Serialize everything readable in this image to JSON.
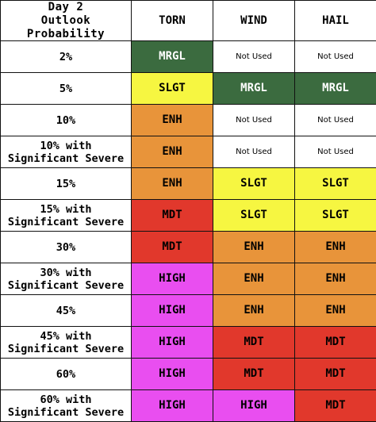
{
  "header": {
    "corner_line1": "Day 2",
    "corner_line2": "Outlook Probability",
    "columns": [
      "TORN",
      "WIND",
      "HAIL"
    ]
  },
  "colors": {
    "MRGL": "#3b6b3f",
    "SLGT": "#f6f641",
    "ENH": "#e8943a",
    "MDT": "#e1382c",
    "HIGH": "#e94ef0",
    "Not Used": "#ffffff"
  },
  "rows": [
    {
      "prob_line1": "2%",
      "prob_line2": "",
      "torn": "MRGL",
      "wind": "Not Used",
      "hail": "Not Used"
    },
    {
      "prob_line1": "5%",
      "prob_line2": "",
      "torn": "SLGT",
      "wind": "MRGL",
      "hail": "MRGL"
    },
    {
      "prob_line1": "10%",
      "prob_line2": "",
      "torn": "ENH",
      "wind": "Not Used",
      "hail": "Not Used"
    },
    {
      "prob_line1": "10% with",
      "prob_line2": "Significant Severe",
      "torn": "ENH",
      "wind": "Not Used",
      "hail": "Not Used"
    },
    {
      "prob_line1": "15%",
      "prob_line2": "",
      "torn": "ENH",
      "wind": "SLGT",
      "hail": "SLGT"
    },
    {
      "prob_line1": "15% with",
      "prob_line2": "Significant Severe",
      "torn": "MDT",
      "wind": "SLGT",
      "hail": "SLGT"
    },
    {
      "prob_line1": "30%",
      "prob_line2": "",
      "torn": "MDT",
      "wind": "ENH",
      "hail": "ENH"
    },
    {
      "prob_line1": "30% with",
      "prob_line2": "Significant Severe",
      "torn": "HIGH",
      "wind": "ENH",
      "hail": "ENH"
    },
    {
      "prob_line1": "45%",
      "prob_line2": "",
      "torn": "HIGH",
      "wind": "ENH",
      "hail": "ENH"
    },
    {
      "prob_line1": "45% with",
      "prob_line2": "Significant Severe",
      "torn": "HIGH",
      "wind": "MDT",
      "hail": "MDT"
    },
    {
      "prob_line1": "60%",
      "prob_line2": "",
      "torn": "HIGH",
      "wind": "MDT",
      "hail": "MDT"
    },
    {
      "prob_line1": "60% with",
      "prob_line2": "Significant Severe",
      "torn": "HIGH",
      "wind": "HIGH",
      "hail": "MDT"
    }
  ]
}
